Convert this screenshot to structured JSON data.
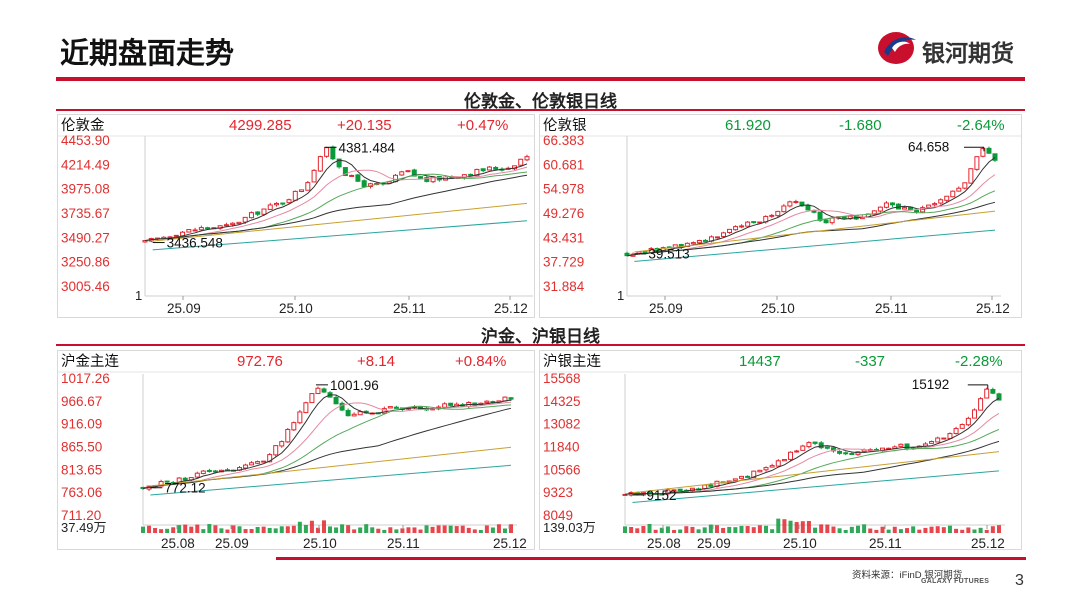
{
  "slide": {
    "title": "近期盘面走势",
    "brand": "银河期货",
    "section1_title": "伦敦金、伦敦银日线",
    "section2_title": "沪金、沪银日线",
    "source": "资料来源：iFinD 银河期货",
    "source_en": "GALAXY FUTURES",
    "page_number": "3"
  },
  "colors": {
    "brand_red": "#c8102e",
    "up": "#e3262e",
    "down": "#0a9a39",
    "ma_black": "#333333",
    "ma_orange": "#f0a040",
    "ma_teal": "#2aa5a0",
    "ma_pink": "#e58aa0",
    "ma_green": "#56a85a",
    "ma_gold": "#c8a030"
  },
  "chart_data": [
    {
      "type": "line",
      "name": "伦敦金",
      "header": {
        "name": "伦敦金",
        "last": "4299.285",
        "change": "+20.135",
        "pct": "+0.47%",
        "direction": "up"
      },
      "y_tick_labels": [
        "4453.90",
        "4214.49",
        "3975.08",
        "3735.67",
        "3490.27",
        "3250.86",
        "3005.46"
      ],
      "ylim": [
        3005.46,
        4453.9
      ],
      "volume_axis_label": "1",
      "x_tick_labels": [
        "25.09",
        "25.10",
        "25.11",
        "25.12"
      ],
      "annotations": [
        {
          "text": "4381.484",
          "x": 0.47,
          "y": 4381.484,
          "kind": "high"
        },
        {
          "text": "3436.548",
          "x": 0.02,
          "y": 3436.548,
          "kind": "low"
        }
      ],
      "candle_keypoints": [
        [
          0,
          3436.5
        ],
        [
          0.08,
          3530
        ],
        [
          0.15,
          3580
        ],
        [
          0.22,
          3600
        ],
        [
          0.3,
          3750
        ],
        [
          0.36,
          3840
        ],
        [
          0.42,
          4000
        ],
        [
          0.47,
          4380
        ],
        [
          0.53,
          4100
        ],
        [
          0.58,
          4000
        ],
        [
          0.63,
          4010
        ],
        [
          0.68,
          4150
        ],
        [
          0.73,
          4050
        ],
        [
          0.78,
          4080
        ],
        [
          0.84,
          4120
        ],
        [
          0.9,
          4170
        ],
        [
          0.95,
          4180
        ],
        [
          1,
          4300
        ]
      ]
    },
    {
      "type": "line",
      "name": "伦敦银",
      "header": {
        "name": "伦敦银",
        "last": "61.920",
        "change": "-1.680",
        "pct": "-2.64%",
        "direction": "down"
      },
      "y_tick_labels": [
        "66.383",
        "60.681",
        "54.978",
        "49.276",
        "43.431",
        "37.729",
        "31.884"
      ],
      "ylim": [
        31.884,
        66.383
      ],
      "volume_axis_label": "1",
      "x_tick_labels": [
        "25.09",
        "25.10",
        "25.11",
        "25.12"
      ],
      "annotations": [
        {
          "text": "64.658",
          "x": 0.97,
          "y": 64.658,
          "kind": "high"
        },
        {
          "text": "39.513",
          "x": 0.02,
          "y": 39.513,
          "kind": "low"
        }
      ],
      "candle_keypoints": [
        [
          0,
          39.5
        ],
        [
          0.08,
          40.5
        ],
        [
          0.15,
          41.5
        ],
        [
          0.25,
          44
        ],
        [
          0.33,
          46.5
        ],
        [
          0.4,
          49
        ],
        [
          0.45,
          52.5
        ],
        [
          0.5,
          50
        ],
        [
          0.53,
          47
        ],
        [
          0.58,
          48
        ],
        [
          0.66,
          48.5
        ],
        [
          0.7,
          51
        ],
        [
          0.74,
          50.5
        ],
        [
          0.78,
          49.5
        ],
        [
          0.84,
          51
        ],
        [
          0.88,
          54
        ],
        [
          0.92,
          56
        ],
        [
          0.96,
          64.6
        ],
        [
          1,
          61.9
        ]
      ]
    },
    {
      "type": "line",
      "name": "沪金主连",
      "header": {
        "name": "沪金主连",
        "last": "972.76",
        "change": "+8.14",
        "pct": "+0.84%",
        "direction": "up"
      },
      "y_tick_labels": [
        "1017.26",
        "966.67",
        "916.09",
        "865.50",
        "813.65",
        "763.06",
        "711.20"
      ],
      "ylim": [
        711.2,
        1017.26
      ],
      "volume_axis_label": "37.49万",
      "x_tick_labels": [
        "25.08",
        "25.09",
        "25.10",
        "25.11",
        "25.12"
      ],
      "annotations": [
        {
          "text": "1001.96",
          "x": 0.47,
          "y": 1001.96,
          "kind": "high"
        },
        {
          "text": "772.12",
          "x": 0.02,
          "y": 772.12,
          "kind": "low"
        }
      ],
      "candle_keypoints": [
        [
          0,
          772
        ],
        [
          0.1,
          790
        ],
        [
          0.18,
          810
        ],
        [
          0.25,
          815
        ],
        [
          0.32,
          830
        ],
        [
          0.37,
          870
        ],
        [
          0.42,
          930
        ],
        [
          0.47,
          1000
        ],
        [
          0.52,
          960
        ],
        [
          0.56,
          935
        ],
        [
          0.62,
          940
        ],
        [
          0.68,
          950
        ],
        [
          0.72,
          945
        ],
        [
          0.8,
          955
        ],
        [
          0.88,
          960
        ],
        [
          0.95,
          965
        ],
        [
          1,
          973
        ]
      ]
    },
    {
      "type": "line",
      "name": "沪银主连",
      "header": {
        "name": "沪银主连",
        "last": "14437",
        "change": "-337",
        "pct": "-2.28%",
        "direction": "down"
      },
      "y_tick_labels": [
        "15568",
        "14325",
        "13082",
        "11840",
        "10566",
        "9323",
        "8049"
      ],
      "ylim": [
        8049,
        15568
      ],
      "volume_axis_label": "139.03万",
      "x_tick_labels": [
        "25.08",
        "25.09",
        "25.10",
        "25.11",
        "25.12"
      ],
      "annotations": [
        {
          "text": "15192",
          "x": 0.97,
          "y": 15192,
          "kind": "high"
        },
        {
          "text": "9152",
          "x": 0.02,
          "y": 9152,
          "kind": "low"
        }
      ],
      "candle_keypoints": [
        [
          0,
          9152
        ],
        [
          0.1,
          9300
        ],
        [
          0.2,
          9600
        ],
        [
          0.3,
          10000
        ],
        [
          0.38,
          10600
        ],
        [
          0.44,
          11400
        ],
        [
          0.5,
          12100
        ],
        [
          0.55,
          11600
        ],
        [
          0.6,
          11400
        ],
        [
          0.66,
          11600
        ],
        [
          0.72,
          11900
        ],
        [
          0.78,
          11700
        ],
        [
          0.84,
          12200
        ],
        [
          0.88,
          12600
        ],
        [
          0.92,
          13300
        ],
        [
          0.97,
          15190
        ],
        [
          1,
          14437
        ]
      ]
    }
  ]
}
